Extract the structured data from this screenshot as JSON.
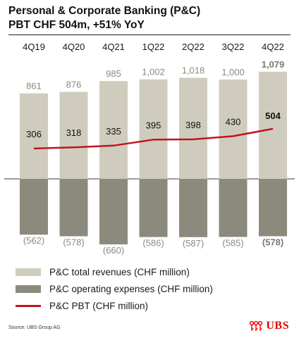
{
  "header": {
    "title_line1": "Personal & Corporate Banking (P&C)",
    "title_line2": "PBT CHF 504m, +51% YoY"
  },
  "chart_data": {
    "type": "bar",
    "categories": [
      "4Q19",
      "4Q20",
      "4Q21",
      "1Q22",
      "2Q22",
      "3Q22",
      "4Q22"
    ],
    "revenue_labels": [
      "861",
      "876",
      "985",
      "1,002",
      "1,018",
      "1,000",
      "1,079"
    ],
    "expense_labels": [
      "(562)",
      "(578)",
      "(660)",
      "(586)",
      "(587)",
      "(585)",
      "(578)"
    ],
    "pbt_labels": [
      "306",
      "318",
      "335",
      "395",
      "398",
      "430",
      "504"
    ],
    "series": [
      {
        "name": "P&C total revenues (CHF million)",
        "type": "bar",
        "color": "#cfccbe",
        "values": [
          861,
          876,
          985,
          1002,
          1018,
          1000,
          1079
        ]
      },
      {
        "name": "P&C operating expenses (CHF million)",
        "type": "bar",
        "color": "#8c8a7d",
        "values": [
          -562,
          -578,
          -660,
          -586,
          -587,
          -585,
          -578
        ]
      },
      {
        "name": "P&C PBT (CHF million)",
        "type": "line",
        "color": "#c0141c",
        "values": [
          306,
          318,
          335,
          395,
          398,
          430,
          504
        ]
      }
    ],
    "highlight_index": 6,
    "label_color": "#8a8a80",
    "highlight_label_color": "#7a7a70"
  },
  "legend": [
    {
      "label": "P&C total revenues (CHF million)",
      "kind": "bar",
      "color": "#cfccbe"
    },
    {
      "label": "P&C operating expenses (CHF million)",
      "kind": "bar",
      "color": "#8c8a7d"
    },
    {
      "label": "P&C PBT (CHF million)",
      "kind": "line",
      "color": "#c0141c"
    }
  ],
  "footer": {
    "source": "Source: UBS Group AG",
    "logo_text": "UBS"
  }
}
